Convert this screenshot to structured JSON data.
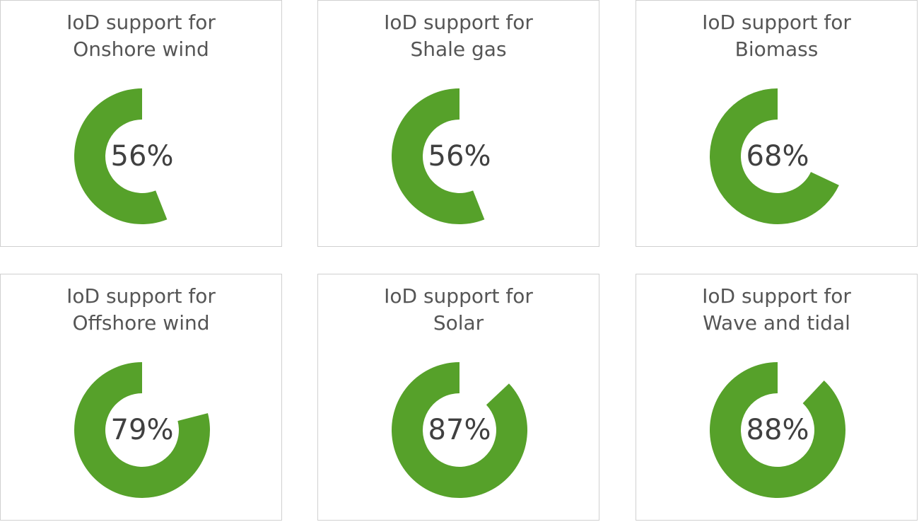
{
  "chart_data": [
    {
      "type": "donut",
      "title": "IoD support for Onshore wind",
      "values": [
        56
      ],
      "value_labels": [
        "56%"
      ],
      "color": "#56a12a"
    },
    {
      "type": "donut",
      "title": "IoD support for Shale gas",
      "values": [
        56
      ],
      "value_labels": [
        "56%"
      ],
      "color": "#56a12a"
    },
    {
      "type": "donut",
      "title": "IoD support for Biomass",
      "values": [
        68
      ],
      "value_labels": [
        "68%"
      ],
      "color": "#56a12a"
    },
    {
      "type": "donut",
      "title": "IoD support for Offshore wind",
      "values": [
        79
      ],
      "value_labels": [
        "79%"
      ],
      "color": "#56a12a"
    },
    {
      "type": "donut",
      "title": "IoD support for Solar",
      "values": [
        87
      ],
      "value_labels": [
        "87%"
      ],
      "color": "#56a12a"
    },
    {
      "type": "donut",
      "title": "IoD support for Wave and tidal",
      "values": [
        88
      ],
      "value_labels": [
        "88%"
      ],
      "color": "#56a12a"
    }
  ]
}
